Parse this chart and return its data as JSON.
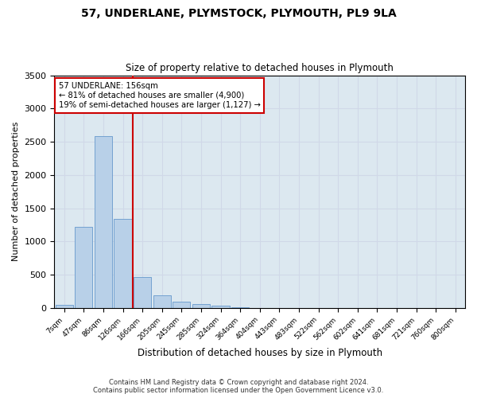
{
  "title": "57, UNDERLANE, PLYMSTOCK, PLYMOUTH, PL9 9LA",
  "subtitle": "Size of property relative to detached houses in Plymouth",
  "xlabel": "Distribution of detached houses by size in Plymouth",
  "ylabel": "Number of detached properties",
  "categories": [
    "7sqm",
    "47sqm",
    "86sqm",
    "126sqm",
    "166sqm",
    "205sqm",
    "245sqm",
    "285sqm",
    "324sqm",
    "364sqm",
    "404sqm",
    "443sqm",
    "483sqm",
    "522sqm",
    "562sqm",
    "602sqm",
    "641sqm",
    "681sqm",
    "721sqm",
    "760sqm",
    "800sqm"
  ],
  "values": [
    50,
    1220,
    2590,
    1340,
    470,
    185,
    100,
    60,
    35,
    5,
    0,
    0,
    0,
    0,
    0,
    0,
    0,
    0,
    0,
    0,
    0
  ],
  "bar_color": "#b8d0e8",
  "bar_edge_color": "#6699cc",
  "vline_color": "#cc0000",
  "annotation_text": "57 UNDERLANE: 156sqm\n← 81% of detached houses are smaller (4,900)\n19% of semi-detached houses are larger (1,127) →",
  "annotation_box_color": "#ffffff",
  "annotation_box_edge": "#cc0000",
  "ylim": [
    0,
    3500
  ],
  "yticks": [
    0,
    500,
    1000,
    1500,
    2000,
    2500,
    3000,
    3500
  ],
  "grid_color": "#d0d8e8",
  "background_color": "#dce8f0",
  "fig_background": "#ffffff",
  "footer_line1": "Contains HM Land Registry data © Crown copyright and database right 2024.",
  "footer_line2": "Contains public sector information licensed under the Open Government Licence v3.0."
}
